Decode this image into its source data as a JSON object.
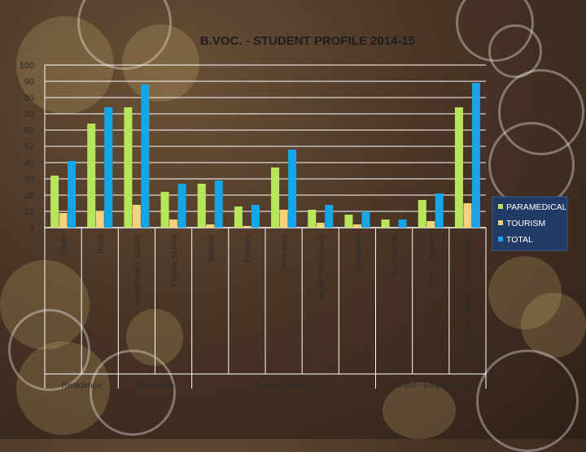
{
  "chart_data": {
    "type": "bar",
    "title": "B.VOC. - STUDENT PROFILE 2014-15",
    "categories": [
      "Urban",
      "Rural",
      "Government School",
      "Private School",
      "Illiterate",
      "Primary",
      "Secondary",
      "Higher Secondary",
      "Graduates",
      "Govt.Sector",
      "Pvt. Company",
      "Unorganized Sector & Daily Wages"
    ],
    "series": [
      {
        "name": "PARAMEDICAL",
        "color": "#b8e65a",
        "values": [
          32,
          64,
          74,
          22,
          27,
          13,
          37,
          11,
          8,
          5,
          17,
          74
        ]
      },
      {
        "name": "TOURISM",
        "color": "#f2d27a",
        "values": [
          9,
          10,
          14,
          5,
          2,
          1,
          11,
          3,
          2,
          0,
          4,
          15
        ]
      },
      {
        "name": "TOTAL",
        "color": "#15a6e8",
        "values": [
          41,
          74,
          88,
          27,
          29,
          14,
          48,
          14,
          10,
          5,
          21,
          89
        ]
      }
    ],
    "groups": [
      {
        "label": "Residence",
        "span": [
          0,
          1
        ]
      },
      {
        "label": "Education",
        "span": [
          2,
          3
        ]
      },
      {
        "label": "Parent Literacy",
        "span": [
          4,
          8
        ]
      },
      {
        "label": "Parent - Employment",
        "span": [
          9,
          11
        ]
      }
    ],
    "yticks": [
      "0",
      "10",
      "20",
      "30",
      "40",
      "50",
      "60",
      "70",
      "80",
      "90",
      "100"
    ],
    "ylim": [
      0,
      100
    ],
    "grid": true,
    "legend_position": "right"
  }
}
